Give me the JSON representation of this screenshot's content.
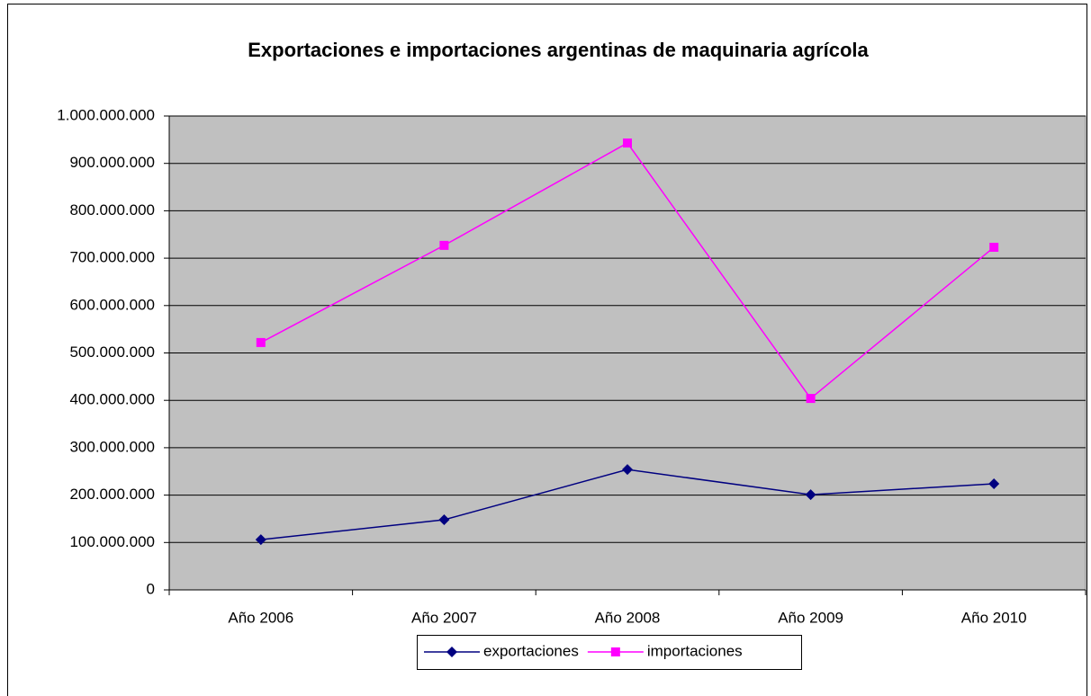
{
  "chart_data": {
    "type": "line",
    "title": "Exportaciones e importaciones argentinas de maquinaria agrícola",
    "categories": [
      "Año 2006",
      "Año 2007",
      "Año 2008",
      "Año 2009",
      "Año 2010"
    ],
    "series": [
      {
        "name": "exportaciones",
        "color": "#000080",
        "marker": "diamond",
        "values": [
          106000000,
          148000000,
          254000000,
          201000000,
          224000000
        ]
      },
      {
        "name": "importaciones",
        "color": "#ff00ff",
        "marker": "square",
        "values": [
          522000000,
          727000000,
          943000000,
          404000000,
          723000000
        ]
      }
    ],
    "ylim": [
      0,
      1000000000
    ],
    "yticks": [
      0,
      {
        "value": 100000000,
        "label": "100.000.000"
      },
      {
        "value": 200000000,
        "label": "200.000.000"
      },
      {
        "value": 300000000,
        "label": "300.000.000"
      },
      {
        "value": 400000000,
        "label": "400.000.000"
      },
      {
        "value": 500000000,
        "label": "500.000.000"
      },
      {
        "value": 600000000,
        "label": "600.000.000"
      },
      {
        "value": 700000000,
        "label": "700.000.000"
      },
      {
        "value": 800000000,
        "label": "800.000.000"
      },
      {
        "value": 900000000,
        "label": "900.000.000"
      },
      {
        "value": 1000000000,
        "label": "1.000.000.000"
      }
    ],
    "grid": true,
    "legend": "bottom"
  }
}
